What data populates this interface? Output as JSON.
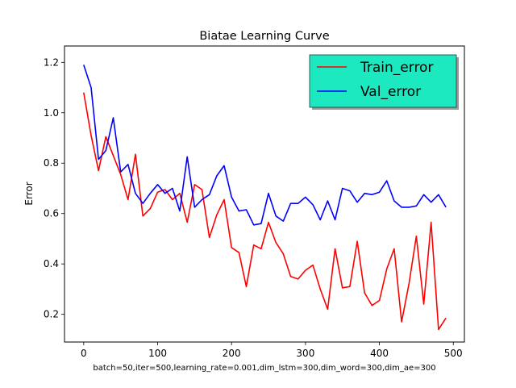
{
  "chart_data": {
    "type": "line",
    "title": "Biatae Learning Curve",
    "xlabel": "batch=50,iter=500,learning_rate=0.001,dim_lstm=300,dim_word=300,dim_ae=300",
    "ylabel": "Error",
    "xlim": [
      -26,
      515
    ],
    "ylim": [
      0.09,
      1.265
    ],
    "xticks": [
      0,
      100,
      200,
      300,
      400,
      500
    ],
    "xtick_labels": [
      "0",
      "100",
      "200",
      "300",
      "400",
      "500"
    ],
    "yticks": [
      0.2,
      0.4,
      0.6,
      0.8,
      1.0,
      1.2
    ],
    "ytick_labels": [
      "0.2",
      "0.4",
      "0.6",
      "0.8",
      "1.0",
      "1.2"
    ],
    "grid": false,
    "legend_position": "top-right",
    "legend_facecolor": "#1de9c0",
    "x": [
      0,
      10,
      20,
      30,
      40,
      50,
      60,
      70,
      80,
      90,
      100,
      110,
      120,
      130,
      140,
      150,
      160,
      170,
      180,
      190,
      200,
      210,
      220,
      230,
      240,
      250,
      260,
      270,
      280,
      290,
      300,
      310,
      320,
      330,
      340,
      350,
      360,
      370,
      380,
      390,
      400,
      410,
      420,
      430,
      440,
      450,
      460,
      470,
      480,
      490
    ],
    "series": [
      {
        "name": "Train_error",
        "color": "#ff0000",
        "values": [
          1.08,
          0.91,
          0.77,
          0.905,
          0.83,
          0.755,
          0.655,
          0.835,
          0.59,
          0.62,
          0.685,
          0.695,
          0.655,
          0.68,
          0.565,
          0.715,
          0.695,
          0.505,
          0.595,
          0.655,
          0.465,
          0.445,
          0.31,
          0.475,
          0.46,
          0.565,
          0.485,
          0.44,
          0.35,
          0.34,
          0.375,
          0.395,
          0.3,
          0.22,
          0.46,
          0.305,
          0.31,
          0.49,
          0.285,
          0.235,
          0.255,
          0.38,
          0.46,
          0.17,
          0.32,
          0.51,
          0.24,
          0.565,
          0.14,
          0.185
        ]
      },
      {
        "name": "Val_error",
        "color": "#0000ff",
        "values": [
          1.19,
          1.1,
          0.815,
          0.85,
          0.98,
          0.765,
          0.795,
          0.68,
          0.64,
          0.68,
          0.715,
          0.68,
          0.7,
          0.61,
          0.825,
          0.625,
          0.655,
          0.675,
          0.75,
          0.79,
          0.665,
          0.61,
          0.615,
          0.555,
          0.56,
          0.68,
          0.59,
          0.57,
          0.64,
          0.64,
          0.665,
          0.635,
          0.575,
          0.65,
          0.575,
          0.7,
          0.69,
          0.645,
          0.68,
          0.675,
          0.685,
          0.73,
          0.65,
          0.625,
          0.625,
          0.63,
          0.675,
          0.645,
          0.675,
          0.625
        ]
      }
    ]
  }
}
